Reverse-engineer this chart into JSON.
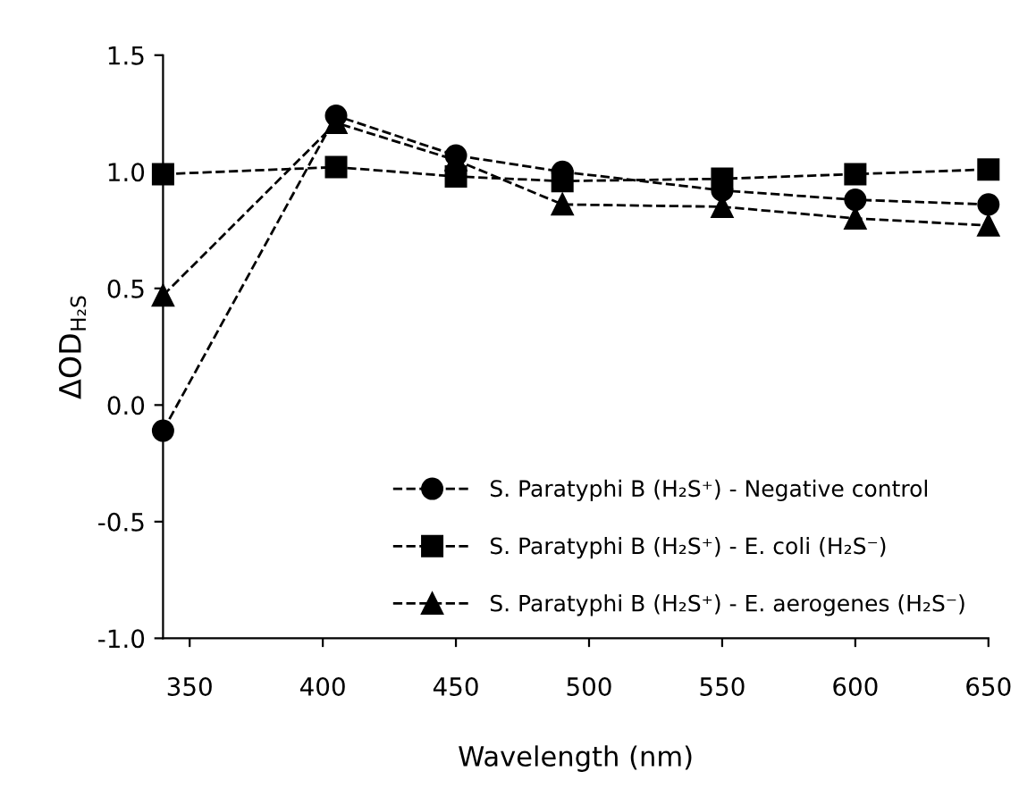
{
  "chart_data": {
    "type": "line",
    "xlabel": "Wavelength (nm)",
    "ylabel": "ΔOD$_{H₂S}$",
    "x": [
      340,
      405,
      450,
      490,
      550,
      600,
      650
    ],
    "series": [
      {
        "name": "S. Paratyphi B (H₂S⁺) - Negative control",
        "color": "#000000",
        "marker": "circle",
        "values": [
          -0.11,
          1.24,
          1.07,
          1.0,
          0.92,
          0.88,
          0.86
        ]
      },
      {
        "name": "S. Paratyphi B (H₂S⁺) - E. coli (H₂S⁻)",
        "color": "#000000",
        "marker": "square",
        "values": [
          0.99,
          1.02,
          0.98,
          0.96,
          0.97,
          0.99,
          1.01
        ]
      },
      {
        "name": "S. Paratyphi B (H₂S⁺) - E. aerogenes (H₂S⁻)",
        "color": "#000000",
        "marker": "triangle",
        "values": [
          0.47,
          1.21,
          1.05,
          0.86,
          0.85,
          0.8,
          0.77
        ]
      }
    ],
    "xlim": [
      340,
      650
    ],
    "xticks": [
      350,
      400,
      450,
      500,
      550,
      600,
      650
    ],
    "ylim": [
      -1.0,
      1.5
    ],
    "yticks": [
      {
        "value": -1.0,
        "label": "-1.0"
      },
      {
        "value": -0.5,
        "label": "-0.5"
      },
      {
        "value": 0.0,
        "label": "0.0"
      },
      {
        "value": 0.5,
        "label": "0.5"
      },
      {
        "value": 1.0,
        "label": "1.0"
      },
      {
        "value": 1.5,
        "label": "1.5"
      }
    ],
    "grid": false,
    "legend": "bottom right",
    "line_style": "dashed"
  }
}
